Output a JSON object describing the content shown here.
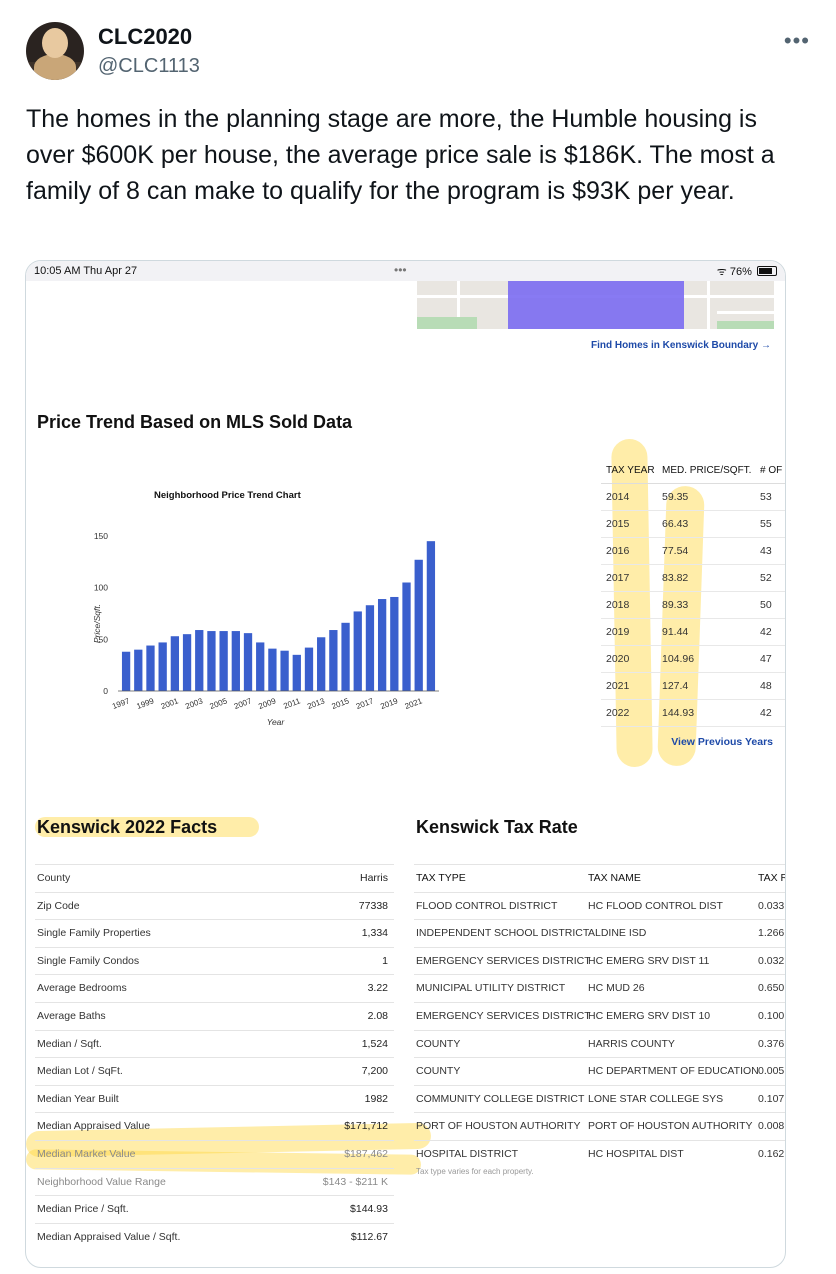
{
  "tweet": {
    "display_name": "CLC2020",
    "handle": "@CLC1113",
    "more": "•••",
    "text": "The homes in the planning stage are more, the Humble housing is over $600K per house, the average price sale is $186K. The most a family of 8 can make to qualify for the program is $93K per year."
  },
  "status_bar": {
    "time": "10:05 AM   Thu Apr 27",
    "dots": "•••",
    "wifi": "ᯤ",
    "battery": "76%"
  },
  "map": {
    "link": "Find Homes in Kenswick Boundary →"
  },
  "price_trend": {
    "title": "Price Trend Based on MLS Sold Data"
  },
  "chart_data": {
    "type": "bar",
    "title": "Neighborhood Price Trend Chart",
    "xlabel": "Year",
    "ylabel": "Price/Sqft.",
    "ylim": [
      0,
      150
    ],
    "yticks": [
      0,
      50,
      100,
      150
    ],
    "categories": [
      "1997",
      "1998",
      "1999",
      "2000",
      "2001",
      "2002",
      "2003",
      "2004",
      "2005",
      "2006",
      "2007",
      "2008",
      "2009",
      "2010",
      "2011",
      "2012",
      "2013",
      "2014",
      "2015",
      "2016",
      "2017",
      "2018",
      "2019",
      "2020",
      "2021",
      "2022"
    ],
    "xtick_labels": [
      "1997",
      "1999",
      "2001",
      "2003",
      "2005",
      "2007",
      "2009",
      "2011",
      "2013",
      "2015",
      "2017",
      "2019",
      "2021"
    ],
    "values": [
      38,
      40,
      44,
      47,
      53,
      55,
      59,
      58,
      58,
      58,
      56,
      47,
      41,
      39,
      35,
      42,
      52,
      59,
      66,
      77,
      83,
      89,
      91,
      105,
      127,
      145
    ],
    "color": "#3a5fcd"
  },
  "mls_table": {
    "headers": [
      "TAX YEAR",
      "MED. PRICE/SQFT.",
      "# OF"
    ],
    "rows": [
      [
        "2014",
        "59.35",
        "53"
      ],
      [
        "2015",
        "66.43",
        "55"
      ],
      [
        "2016",
        "77.54",
        "43"
      ],
      [
        "2017",
        "83.82",
        "52"
      ],
      [
        "2018",
        "89.33",
        "50"
      ],
      [
        "2019",
        "91.44",
        "42"
      ],
      [
        "2020",
        "104.96",
        "47"
      ],
      [
        "2021",
        "127.4",
        "48"
      ],
      [
        "2022",
        "144.93",
        "42"
      ]
    ],
    "view_previous": "View Previous Years"
  },
  "facts": {
    "title": "Kenswick 2022 Facts",
    "rows": [
      {
        "label": "County",
        "value": "Harris"
      },
      {
        "label": "Zip Code",
        "value": "77338"
      },
      {
        "label": "Single Family Properties",
        "value": "1,334"
      },
      {
        "label": "Single Family Condos",
        "value": "1"
      },
      {
        "label": "Average Bedrooms",
        "value": "3.22"
      },
      {
        "label": "Average Baths",
        "value": "2.08"
      },
      {
        "label": "Median / Sqft.",
        "value": "1,524"
      },
      {
        "label": "Median Lot / SqFt.",
        "value": "7,200"
      },
      {
        "label": "Median Year Built",
        "value": "1982"
      },
      {
        "label": "Median Appraised Value",
        "value": "$171,712"
      },
      {
        "label": "Median Market Value",
        "value": "$187,462"
      },
      {
        "label": "Neighborhood Value Range",
        "value": "$143 - $211 K"
      },
      {
        "label": "Median Price / Sqft.",
        "value": "$144.93"
      },
      {
        "label": "Median Appraised Value / Sqft.",
        "value": "$112.67"
      }
    ]
  },
  "tax_rate": {
    "title": "Kenswick Tax Rate",
    "headers": [
      "TAX TYPE",
      "TAX NAME",
      "TAX R"
    ],
    "rows": [
      [
        "FLOOD CONTROL DISTRICT",
        "HC FLOOD CONTROL DIST",
        "0.033"
      ],
      [
        "INDEPENDENT SCHOOL DISTRICT",
        "ALDINE ISD",
        "1.266"
      ],
      [
        "EMERGENCY SERVICES DISTRICT",
        "HC EMERG SRV DIST 11",
        "0.032"
      ],
      [
        "MUNICIPAL UTILITY DISTRICT",
        "HC MUD 26",
        "0.650"
      ],
      [
        "EMERGENCY SERVICES DISTRICT",
        "HC EMERG SRV DIST 10",
        "0.100"
      ],
      [
        "COUNTY",
        "HARRIS COUNTY",
        "0.376"
      ],
      [
        "COUNTY",
        "HC DEPARTMENT OF EDUCATION",
        "0.005"
      ],
      [
        "COMMUNITY COLLEGE DISTRICT",
        "LONE STAR COLLEGE SYS",
        "0.107"
      ],
      [
        "PORT OF HOUSTON AUTHORITY",
        "PORT OF HOUSTON AUTHORITY",
        "0.008"
      ],
      [
        "HOSPITAL DISTRICT",
        "HC HOSPITAL DIST",
        "0.162"
      ]
    ],
    "note": "Tax type varies for each property."
  },
  "colors": {
    "accent_link": "#1e4aa8",
    "highlighter": "#ffd640",
    "bar": "#3a5fcd",
    "map_boundary": "#7b6cf2"
  }
}
